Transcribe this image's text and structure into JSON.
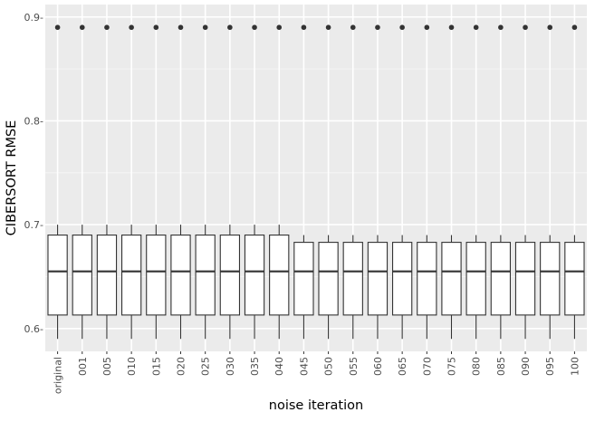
{
  "chart_data": {
    "type": "boxplot",
    "xlabel": "noise iteration",
    "ylabel": "CIBERSORT RMSE",
    "ylim": [
      0.578,
      0.912
    ],
    "yticks": [
      0.6,
      0.7,
      0.8,
      0.9
    ],
    "ytick_labels": [
      "0.6-",
      "0.7-",
      "0.8-",
      "0.9-"
    ],
    "grid": true,
    "categories": [
      "original",
      "001",
      "005",
      "010",
      "015",
      "020",
      "025",
      "030",
      "035",
      "040",
      "045",
      "050",
      "055",
      "060",
      "065",
      "070",
      "075",
      "080",
      "085",
      "090",
      "095",
      "100"
    ],
    "boxes": [
      {
        "whisker_low": 0.59,
        "q1": 0.613,
        "median": 0.655,
        "q3": 0.69,
        "whisker_high": 0.7,
        "outlier": 0.89
      },
      {
        "whisker_low": 0.59,
        "q1": 0.613,
        "median": 0.655,
        "q3": 0.69,
        "whisker_high": 0.7,
        "outlier": 0.89
      },
      {
        "whisker_low": 0.59,
        "q1": 0.613,
        "median": 0.655,
        "q3": 0.69,
        "whisker_high": 0.7,
        "outlier": 0.89
      },
      {
        "whisker_low": 0.59,
        "q1": 0.613,
        "median": 0.655,
        "q3": 0.69,
        "whisker_high": 0.7,
        "outlier": 0.89
      },
      {
        "whisker_low": 0.59,
        "q1": 0.613,
        "median": 0.655,
        "q3": 0.69,
        "whisker_high": 0.7,
        "outlier": 0.89
      },
      {
        "whisker_low": 0.59,
        "q1": 0.613,
        "median": 0.655,
        "q3": 0.69,
        "whisker_high": 0.7,
        "outlier": 0.89
      },
      {
        "whisker_low": 0.59,
        "q1": 0.613,
        "median": 0.655,
        "q3": 0.69,
        "whisker_high": 0.7,
        "outlier": 0.89
      },
      {
        "whisker_low": 0.59,
        "q1": 0.613,
        "median": 0.655,
        "q3": 0.69,
        "whisker_high": 0.7,
        "outlier": 0.89
      },
      {
        "whisker_low": 0.59,
        "q1": 0.613,
        "median": 0.655,
        "q3": 0.69,
        "whisker_high": 0.7,
        "outlier": 0.89
      },
      {
        "whisker_low": 0.59,
        "q1": 0.613,
        "median": 0.655,
        "q3": 0.69,
        "whisker_high": 0.7,
        "outlier": 0.89
      },
      {
        "whisker_low": 0.59,
        "q1": 0.613,
        "median": 0.655,
        "q3": 0.683,
        "whisker_high": 0.69,
        "outlier": 0.89
      },
      {
        "whisker_low": 0.59,
        "q1": 0.613,
        "median": 0.655,
        "q3": 0.683,
        "whisker_high": 0.69,
        "outlier": 0.89
      },
      {
        "whisker_low": 0.59,
        "q1": 0.613,
        "median": 0.655,
        "q3": 0.683,
        "whisker_high": 0.69,
        "outlier": 0.89
      },
      {
        "whisker_low": 0.59,
        "q1": 0.613,
        "median": 0.655,
        "q3": 0.683,
        "whisker_high": 0.69,
        "outlier": 0.89
      },
      {
        "whisker_low": 0.59,
        "q1": 0.613,
        "median": 0.655,
        "q3": 0.683,
        "whisker_high": 0.69,
        "outlier": 0.89
      },
      {
        "whisker_low": 0.59,
        "q1": 0.613,
        "median": 0.655,
        "q3": 0.683,
        "whisker_high": 0.69,
        "outlier": 0.89
      },
      {
        "whisker_low": 0.59,
        "q1": 0.613,
        "median": 0.655,
        "q3": 0.683,
        "whisker_high": 0.69,
        "outlier": 0.89
      },
      {
        "whisker_low": 0.59,
        "q1": 0.613,
        "median": 0.655,
        "q3": 0.683,
        "whisker_high": 0.69,
        "outlier": 0.89
      },
      {
        "whisker_low": 0.59,
        "q1": 0.613,
        "median": 0.655,
        "q3": 0.683,
        "whisker_high": 0.69,
        "outlier": 0.89
      },
      {
        "whisker_low": 0.59,
        "q1": 0.613,
        "median": 0.655,
        "q3": 0.683,
        "whisker_high": 0.69,
        "outlier": 0.89
      },
      {
        "whisker_low": 0.59,
        "q1": 0.613,
        "median": 0.655,
        "q3": 0.683,
        "whisker_high": 0.69,
        "outlier": 0.89
      },
      {
        "whisker_low": 0.59,
        "q1": 0.613,
        "median": 0.655,
        "q3": 0.683,
        "whisker_high": 0.69,
        "outlier": 0.89
      }
    ],
    "colors": {
      "panel": "#ebebeb",
      "grid_major": "#ffffff",
      "grid_minor": "#f5f5f5",
      "box_fill": "#ffffff",
      "box_line": "#333333",
      "outlier": "#333333",
      "tick_text": "#4d4d4d",
      "axis_title": "#000000"
    }
  }
}
